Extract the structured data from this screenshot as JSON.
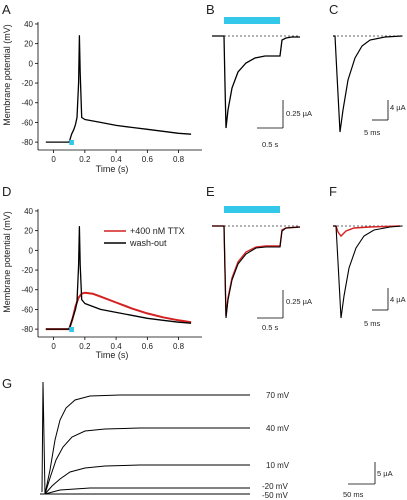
{
  "panels": {
    "A": {
      "letter": "A",
      "ylabel": "Membrane potential (mV)",
      "xlabel": "Time (s)",
      "yticks": [
        "40",
        "20",
        "0",
        "-20",
        "-40",
        "-60",
        "-80"
      ],
      "xticks": [
        "0",
        "0.2",
        "0.4",
        "0.6",
        "0.8"
      ],
      "chart_data": {
        "type": "line",
        "xlim": [
          -0.1,
          0.95
        ],
        "ylim": [
          -88,
          42
        ],
        "series": [
          {
            "color": "#000000",
            "x": [
              -0.05,
              0.0,
              0.05,
              0.1,
              0.115,
              0.13,
              0.14,
              0.15,
              0.16,
              0.165,
              0.17,
              0.18,
              0.2,
              0.3,
              0.4,
              0.5,
              0.6,
              0.7,
              0.8,
              0.88
            ],
            "y": [
              -80,
              -80,
              -80,
              -80,
              -72,
              -67,
              -62,
              -55,
              -20,
              28,
              -10,
              -55,
              -57,
              -60,
              -63,
              -65,
              -67,
              -69,
              -71,
              -72
            ]
          }
        ],
        "light_stimulus": {
          "start": 0.1,
          "end": 0.13,
          "color": "#33c7ea"
        }
      }
    },
    "B": {
      "letter": "B",
      "scale_current": "0.25 µA",
      "scale_time": "0.5 s",
      "stim_color": "#33c7ea"
    },
    "C": {
      "letter": "C",
      "scale_current": "4 µA",
      "scale_time": "5 ms"
    },
    "D": {
      "letter": "D",
      "ylabel": "Membrane potential (mV)",
      "xlabel": "Time (s)",
      "yticks": [
        "40",
        "20",
        "0",
        "-20",
        "-40",
        "-60",
        "-80"
      ],
      "xticks": [
        "0",
        "0.2",
        "0.4",
        "0.6",
        "0.8"
      ],
      "legend": [
        {
          "label": "+400 nM TTX",
          "color": "#d42020"
        },
        {
          "label": "wash-out",
          "color": "#000000"
        }
      ],
      "chart_data": {
        "type": "line",
        "xlim": [
          -0.1,
          0.95
        ],
        "ylim": [
          -88,
          42
        ],
        "series": [
          {
            "color": "#d42020",
            "x": [
              -0.05,
              0.0,
              0.05,
              0.1,
              0.12,
              0.14,
              0.16,
              0.18,
              0.2,
              0.25,
              0.3,
              0.4,
              0.5,
              0.6,
              0.7,
              0.8,
              0.88
            ],
            "y": [
              -80,
              -80,
              -80,
              -80,
              -70,
              -57,
              -48,
              -44,
              -43,
              -44,
              -47,
              -53,
              -59,
              -64,
              -68,
              -71,
              -73
            ]
          },
          {
            "color": "#000000",
            "x": [
              -0.05,
              0.0,
              0.05,
              0.1,
              0.115,
              0.13,
              0.14,
              0.15,
              0.16,
              0.165,
              0.17,
              0.18,
              0.2,
              0.3,
              0.4,
              0.5,
              0.6,
              0.7,
              0.8,
              0.88
            ],
            "y": [
              -80,
              -80,
              -80,
              -80,
              -72,
              -65,
              -60,
              -52,
              -15,
              24,
              -15,
              -50,
              -54,
              -60,
              -63,
              -66,
              -69,
              -71,
              -73,
              -74
            ]
          }
        ],
        "light_stimulus": {
          "start": 0.1,
          "end": 0.13,
          "color": "#33c7ea"
        }
      }
    },
    "E": {
      "letter": "E",
      "scale_current": "0.25 µA",
      "scale_time": "0.5 s",
      "stim_color": "#33c7ea"
    },
    "F": {
      "letter": "F",
      "scale_current": "4 µA",
      "scale_time": "5 ms"
    },
    "G": {
      "letter": "G",
      "scale_current": "5 µA",
      "scale_time": "50 ms",
      "voltages": [
        "70 mV",
        "40 mV",
        "10 mV",
        "-20 mV",
        "-50 mV"
      ]
    }
  }
}
